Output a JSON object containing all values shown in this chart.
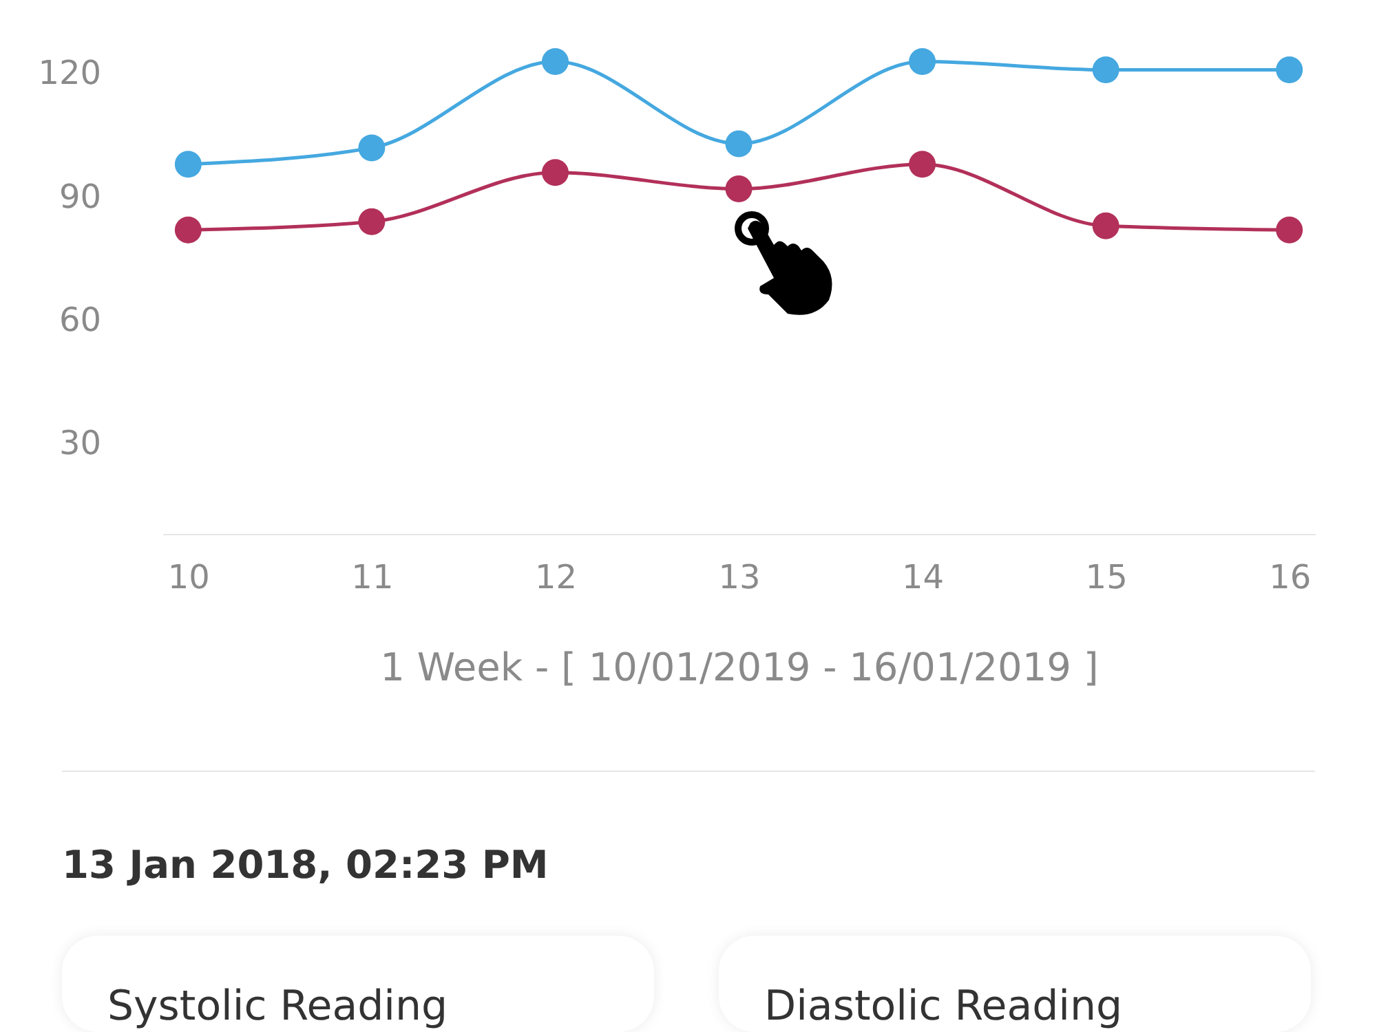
{
  "chart_data": {
    "type": "line",
    "categories": [
      "10",
      "11",
      "12",
      "13",
      "14",
      "15",
      "16"
    ],
    "xlabel": "1 Week - [ 10/01/2019 - 16/01/2019 ]",
    "series": [
      {
        "color": "#45a8e0",
        "values": [
          98,
          102,
          123,
          103,
          123,
          121,
          121
        ]
      },
      {
        "color": "#b2305a",
        "values": [
          82,
          84,
          96,
          92,
          98,
          83,
          82
        ]
      }
    ],
    "ylim": [
      8,
      138
    ],
    "yticks": [
      30,
      60,
      90,
      120
    ],
    "grid": false,
    "marker": "circle",
    "line_style": "solid",
    "annotations": [
      "13 Jan 2018, 02:23 PM",
      "Systolic Reading",
      "Diastolic Reading"
    ]
  }
}
